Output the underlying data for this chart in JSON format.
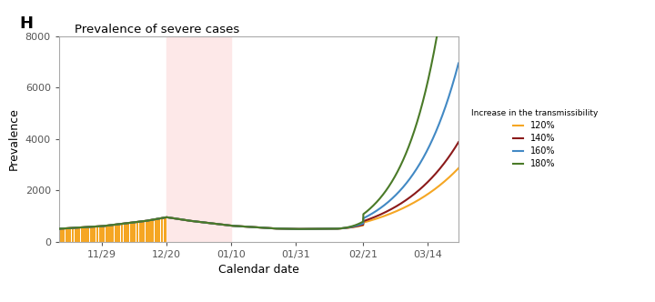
{
  "title": "Prevalence of severe cases",
  "panel_label": "H",
  "xlabel": "Calendar date",
  "ylabel": "Prevalence",
  "ylim": [
    0,
    8000
  ],
  "yticks": [
    0,
    2000,
    4000,
    6000,
    8000
  ],
  "xtick_labels": [
    "11/29",
    "12/20",
    "01/10",
    "01/31",
    "02/21",
    "03/14"
  ],
  "shade_color": "#fde8e8",
  "bar_color": "#f5a623",
  "line_colors": {
    "120": "#f5a623",
    "140": "#8b1a1a",
    "160": "#4289c4",
    "180": "#4a7a28"
  },
  "legend_title": "Increase in the transmissibility",
  "legend_entries": [
    "120%",
    "140%",
    "160%",
    "180%"
  ],
  "background_color": "#ffffff",
  "bar_end_day": 35,
  "shade_start_day": 35,
  "shade_end_day": 56,
  "x_tick_days": [
    14,
    35,
    56,
    77,
    99,
    120
  ],
  "total_days": 130,
  "end_values": {
    "120": 2300,
    "140": 3000,
    "160": 5000,
    "180": 9500
  },
  "end_day": 125
}
